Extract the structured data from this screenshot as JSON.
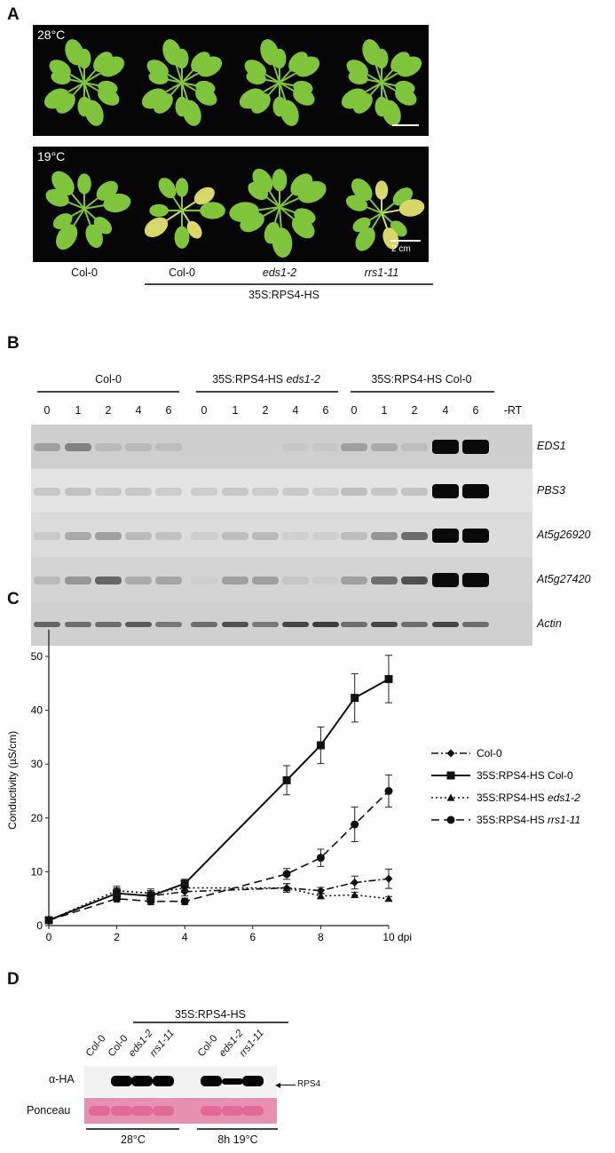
{
  "panel_a": {
    "label": "A",
    "top_temp": "28°C",
    "bottom_temp": "19°C",
    "scale_bar": "2 cm",
    "genotypes": [
      "Col-0",
      "Col-0",
      "eds1-2",
      "rrs1-11"
    ],
    "group_label": "35S:RPS4-HS",
    "leaf_color": "#7fc43a",
    "yellow_leaf_color": "#d8d86a"
  },
  "panel_b": {
    "label": "B",
    "groups": [
      "Col-0",
      "35S:RPS4-HS eds1-2",
      "35S:RPS4-HS Col-0"
    ],
    "group_b_prefix": "35S:RPS4-HS ",
    "group_b_italic": "eds1-2",
    "lanes": [
      "0",
      "1",
      "2",
      "4",
      "6",
      "0",
      "1",
      "2",
      "4",
      "6",
      "0",
      "1",
      "2",
      "4",
      "6",
      "-RT"
    ],
    "genes": [
      "EDS1",
      "PBS3",
      "At5g26920",
      "At5g27420",
      "Actin"
    ],
    "band_intensity": [
      [
        0.25,
        0.4,
        0.12,
        0.12,
        0.1,
        0,
        0,
        0,
        0.05,
        0.05,
        0.25,
        0.2,
        0.1,
        1,
        1,
        0
      ],
      [
        0.05,
        0.08,
        0.04,
        0.05,
        0.03,
        0.03,
        0.05,
        0.03,
        0.04,
        0.02,
        0.1,
        0.06,
        0.08,
        1,
        1,
        0
      ],
      [
        0.04,
        0.2,
        0.25,
        0.12,
        0.08,
        0.02,
        0.1,
        0.12,
        0.01,
        0.01,
        0.1,
        0.3,
        0.5,
        1,
        1,
        0
      ],
      [
        0.12,
        0.3,
        0.55,
        0.2,
        0.22,
        0.02,
        0.25,
        0.25,
        0.06,
        0.03,
        0.25,
        0.5,
        0.65,
        1,
        1,
        0
      ],
      [
        0.55,
        0.5,
        0.5,
        0.6,
        0.45,
        0.5,
        0.65,
        0.45,
        0.7,
        0.75,
        0.5,
        0.7,
        0.5,
        0.7,
        0.5,
        0
      ]
    ]
  },
  "chart_data": {
    "type": "line",
    "panel_label": "C",
    "xlabel": "",
    "x_unit_label": "dpi",
    "ylabel": "Conductivity (µS/cm)",
    "xlim": [
      0,
      10
    ],
    "ylim": [
      0,
      55
    ],
    "xticks": [
      "0",
      "2",
      "4",
      "6",
      "8",
      "10"
    ],
    "yticks": [
      "0",
      "10",
      "20",
      "30",
      "40",
      "50"
    ],
    "grid": false,
    "legend_position": "right",
    "x": [
      0,
      2,
      3,
      4,
      7,
      8,
      9,
      10
    ],
    "series": [
      {
        "name": "Col-0",
        "marker": "diamond",
        "line": "dash-dot",
        "values": [
          1,
          6,
          5.5,
          6.3,
          7,
          6.5,
          8,
          8.7
        ],
        "errors": [
          0.3,
          0.8,
          0.8,
          0.8,
          0.8,
          0.6,
          1.2,
          1.8
        ]
      },
      {
        "name": "35S:RPS4-HS Col-0",
        "marker": "square",
        "line": "solid",
        "values": [
          1,
          6,
          5.5,
          7.8,
          27,
          33.5,
          42.3,
          45.8
        ],
        "errors": [
          0.3,
          1,
          1,
          0.8,
          2.7,
          3.4,
          4.5,
          4.4
        ]
      },
      {
        "name": "35S:RPS4-HS eds1-2",
        "name_prefix": "35S:RPS4-HS ",
        "name_italic": "eds1-2",
        "marker": "triangle",
        "line": "dotted",
        "values": [
          1,
          6.5,
          6,
          7,
          7,
          5.5,
          5.7,
          5
        ],
        "errors": [
          0.3,
          0.8,
          0.8,
          0.6,
          0.8,
          0.5,
          0.5,
          0.4
        ]
      },
      {
        "name": "35S:RPS4-HS rrs1-11",
        "name_prefix": "35S:RPS4-HS ",
        "name_italic": "rrs1-11",
        "marker": "circle",
        "line": "dashed",
        "values": [
          1,
          5,
          4.5,
          4.5,
          9.6,
          12.6,
          18.8,
          25
        ],
        "errors": [
          0.3,
          0.6,
          0.6,
          0.6,
          1,
          1.6,
          3.2,
          3
        ]
      }
    ]
  },
  "panel_d": {
    "label": "D",
    "group_label": "35S:RPS4-HS",
    "lanes": [
      "Col-0",
      "Col-0",
      "eds1-2",
      "rrs1-11",
      "Col-0",
      "eds1-2",
      "rrs1-11"
    ],
    "row_labels": [
      "α-HA",
      "Ponceau"
    ],
    "arrow_label": "RPS4",
    "conditions": [
      "28°C",
      "8h 19°C"
    ],
    "ponceau_color": "#e890b0",
    "ponceau_band_color": "#e05a8e"
  }
}
